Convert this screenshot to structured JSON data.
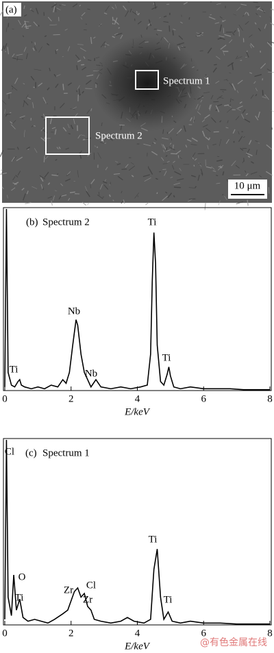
{
  "figure": {
    "panel_a": {
      "panel_label": "(a)",
      "box_labels": [
        "Spectrum 1",
        "Spectrum 2"
      ],
      "scale_bar": "10 μm"
    },
    "watermark": "@有色金属在线"
  },
  "chart_data": [
    {
      "type": "line",
      "panel_label": "(b)",
      "title": "Spectrum 2",
      "xlabel": "E/keV",
      "color": "#000000",
      "xlim": [
        0,
        8
      ],
      "xticks": [
        0,
        2,
        4,
        6,
        8
      ],
      "ylim": [
        0,
        100
      ],
      "annotations": [
        "Ti",
        "Nb",
        "Nb",
        "Ti",
        "Ti"
      ],
      "x": [
        0,
        0.05,
        0.1,
        0.2,
        0.3,
        0.4,
        0.45,
        0.5,
        0.6,
        0.8,
        1.0,
        1.2,
        1.4,
        1.6,
        1.75,
        1.85,
        1.95,
        2.05,
        2.15,
        2.2,
        2.3,
        2.4,
        2.5,
        2.6,
        2.75,
        2.9,
        3.2,
        3.5,
        3.8,
        4.1,
        4.3,
        4.4,
        4.45,
        4.5,
        4.55,
        4.6,
        4.7,
        4.8,
        4.9,
        4.95,
        5.0,
        5.1,
        5.3,
        5.6,
        6.0,
        6.4,
        6.8,
        7.2,
        7.6,
        8.0
      ],
      "values": [
        2,
        100,
        10,
        3,
        2,
        5,
        6,
        3,
        2,
        1,
        2,
        1,
        3,
        2,
        6,
        4,
        10,
        25,
        39,
        36,
        20,
        10,
        6,
        2,
        6,
        2,
        1,
        2,
        1,
        2,
        3,
        20,
        60,
        87,
        70,
        25,
        5,
        3,
        9,
        13,
        8,
        2,
        1,
        2,
        1,
        1,
        1,
        0.5,
        0.5,
        0.5
      ]
    },
    {
      "type": "line",
      "panel_label": "(c)",
      "title": "Spectrum 1",
      "xlabel": "E/keV",
      "color": "#000000",
      "xlim": [
        0,
        8
      ],
      "xticks": [
        0,
        2,
        4,
        6,
        8
      ],
      "ylim": [
        0,
        100
      ],
      "annotations": [
        "Cl",
        "O",
        "Ti",
        "Zr",
        "Cl",
        "Zr",
        "Ti",
        "Ti"
      ],
      "x": [
        0,
        0.05,
        0.1,
        0.2,
        0.27,
        0.35,
        0.45,
        0.55,
        0.7,
        0.9,
        1.1,
        1.3,
        1.5,
        1.75,
        1.9,
        2.0,
        2.1,
        2.2,
        2.3,
        2.4,
        2.5,
        2.6,
        2.7,
        2.9,
        3.2,
        3.5,
        3.7,
        3.9,
        4.2,
        4.4,
        4.5,
        4.6,
        4.7,
        4.8,
        4.93,
        5.05,
        5.3,
        5.6,
        6.0,
        6.5,
        7.0,
        7.5,
        8.0
      ],
      "values": [
        3,
        100,
        15,
        5,
        27,
        8,
        14,
        4,
        2,
        3,
        2,
        1,
        3,
        6,
        8,
        13,
        18,
        20,
        15,
        17,
        10,
        8,
        3,
        2,
        1,
        2,
        4,
        2,
        1,
        3,
        30,
        41,
        15,
        3,
        7,
        2,
        1,
        2,
        1,
        1,
        0.5,
        0.5,
        0.5
      ]
    }
  ]
}
